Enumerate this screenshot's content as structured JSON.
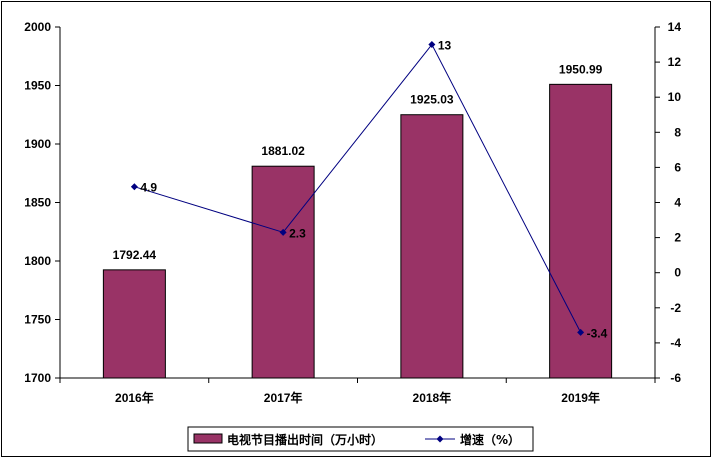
{
  "chart_data": {
    "type": "bar+line",
    "categories": [
      "2016年",
      "2017年",
      "2018年",
      "2019年"
    ],
    "series": [
      {
        "name": "电视节目播出时间（万小时）",
        "type": "bar",
        "axis": "left",
        "values": [
          1792.44,
          1881.02,
          1925.03,
          1950.99
        ],
        "labels": [
          "1792.44",
          "1881.02",
          "1925.03",
          "1950.99"
        ],
        "color": "#993366"
      },
      {
        "name": "增速（%）",
        "type": "line",
        "axis": "right",
        "values": [
          4.9,
          2.3,
          13,
          -3.4
        ],
        "labels": [
          "4.9",
          "2.3",
          "13",
          "-3.4"
        ],
        "color": "#000080"
      }
    ],
    "y_left": {
      "range": [
        1700,
        2000
      ],
      "ticks": [
        "1700",
        "1750",
        "1800",
        "1850",
        "1900",
        "1950",
        "2000"
      ]
    },
    "y_right": {
      "range": [
        -6,
        14
      ],
      "ticks": [
        "-6",
        "-4",
        "-2",
        "0",
        "2",
        "4",
        "6",
        "8",
        "10",
        "12",
        "14"
      ]
    },
    "grid": false,
    "legend": "bottom"
  }
}
